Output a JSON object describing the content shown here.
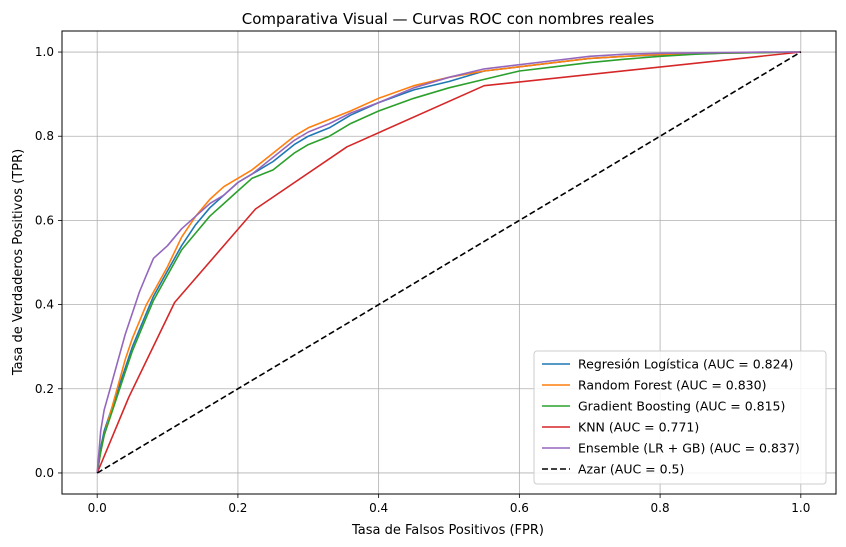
{
  "chart_data": {
    "type": "line",
    "title": "Comparativa Visual — Curvas ROC con nombres reales",
    "xlabel": "Tasa de Falsos Positivos (FPR)",
    "ylabel": "Tasa de Verdaderos Positivos (TPR)",
    "xlim": [
      -0.05,
      1.05
    ],
    "ylim": [
      -0.05,
      1.05
    ],
    "xticks": [
      "0.0",
      "0.2",
      "0.4",
      "0.6",
      "0.8",
      "1.0"
    ],
    "yticks": [
      "0.0",
      "0.2",
      "0.4",
      "0.6",
      "0.8",
      "1.0"
    ],
    "grid": true,
    "legend_position": "lower-right",
    "series": [
      {
        "name": "Regresión Logística (AUC = 0.824)",
        "color": "#1f77b4",
        "dash": "solid",
        "x": [
          0,
          0.005,
          0.01,
          0.02,
          0.03,
          0.04,
          0.05,
          0.06,
          0.07,
          0.08,
          0.1,
          0.12,
          0.14,
          0.16,
          0.18,
          0.2,
          0.22,
          0.25,
          0.28,
          0.3,
          0.33,
          0.36,
          0.4,
          0.45,
          0.5,
          0.55,
          0.6,
          0.65,
          0.7,
          0.75,
          0.8,
          0.85,
          0.9,
          0.95,
          1.0
        ],
        "y": [
          0,
          0.06,
          0.1,
          0.15,
          0.2,
          0.25,
          0.3,
          0.34,
          0.38,
          0.42,
          0.48,
          0.54,
          0.59,
          0.63,
          0.66,
          0.69,
          0.71,
          0.74,
          0.78,
          0.8,
          0.82,
          0.85,
          0.88,
          0.91,
          0.93,
          0.955,
          0.965,
          0.975,
          0.985,
          0.99,
          0.993,
          0.996,
          0.998,
          0.999,
          1.0
        ]
      },
      {
        "name": "Random Forest (AUC = 0.830)",
        "color": "#ff7f0e",
        "dash": "solid",
        "x": [
          0,
          0.005,
          0.01,
          0.02,
          0.03,
          0.04,
          0.05,
          0.06,
          0.07,
          0.08,
          0.1,
          0.12,
          0.14,
          0.16,
          0.18,
          0.2,
          0.22,
          0.25,
          0.28,
          0.3,
          0.33,
          0.36,
          0.4,
          0.45,
          0.5,
          0.55,
          0.6,
          0.65,
          0.7,
          0.75,
          0.8,
          0.85,
          0.9,
          0.95,
          1.0
        ],
        "y": [
          0,
          0.05,
          0.09,
          0.15,
          0.21,
          0.27,
          0.32,
          0.36,
          0.4,
          0.43,
          0.49,
          0.56,
          0.61,
          0.65,
          0.68,
          0.7,
          0.72,
          0.76,
          0.8,
          0.82,
          0.84,
          0.86,
          0.89,
          0.92,
          0.94,
          0.955,
          0.965,
          0.975,
          0.985,
          0.99,
          0.994,
          0.996,
          0.998,
          0.999,
          1.0
        ]
      },
      {
        "name": "Gradient Boosting (AUC = 0.815)",
        "color": "#2ca02c",
        "dash": "solid",
        "x": [
          0,
          0.005,
          0.01,
          0.02,
          0.03,
          0.04,
          0.05,
          0.06,
          0.07,
          0.08,
          0.1,
          0.12,
          0.14,
          0.16,
          0.18,
          0.2,
          0.22,
          0.25,
          0.28,
          0.3,
          0.33,
          0.36,
          0.4,
          0.45,
          0.5,
          0.55,
          0.6,
          0.65,
          0.7,
          0.75,
          0.8,
          0.85,
          0.9,
          0.95,
          1.0
        ],
        "y": [
          0,
          0.05,
          0.09,
          0.14,
          0.19,
          0.24,
          0.29,
          0.33,
          0.37,
          0.41,
          0.47,
          0.53,
          0.57,
          0.61,
          0.64,
          0.67,
          0.7,
          0.72,
          0.76,
          0.78,
          0.8,
          0.83,
          0.86,
          0.89,
          0.915,
          0.935,
          0.955,
          0.965,
          0.975,
          0.983,
          0.99,
          0.995,
          0.998,
          0.999,
          1.0
        ]
      },
      {
        "name": "KNN (AUC = 0.771)",
        "color": "#d62728",
        "dash": "solid",
        "x": [
          0,
          0.045,
          0.11,
          0.225,
          0.355,
          0.55,
          1.0
        ],
        "y": [
          0,
          0.18,
          0.405,
          0.627,
          0.775,
          0.92,
          1.0
        ]
      },
      {
        "name": "Ensemble (LR + GB) (AUC = 0.837)",
        "color": "#9467bd",
        "dash": "solid",
        "x": [
          0,
          0.005,
          0.01,
          0.02,
          0.03,
          0.04,
          0.05,
          0.06,
          0.07,
          0.08,
          0.1,
          0.12,
          0.14,
          0.16,
          0.18,
          0.2,
          0.22,
          0.25,
          0.28,
          0.3,
          0.33,
          0.36,
          0.4,
          0.45,
          0.5,
          0.55,
          0.6,
          0.65,
          0.7,
          0.75,
          0.8,
          0.85,
          0.9,
          0.95,
          1.0
        ],
        "y": [
          0,
          0.1,
          0.15,
          0.21,
          0.27,
          0.33,
          0.38,
          0.43,
          0.47,
          0.51,
          0.54,
          0.58,
          0.61,
          0.64,
          0.66,
          0.69,
          0.71,
          0.75,
          0.79,
          0.81,
          0.83,
          0.855,
          0.88,
          0.915,
          0.94,
          0.96,
          0.97,
          0.98,
          0.99,
          0.995,
          0.997,
          0.998,
          0.999,
          1.0,
          1.0
        ]
      },
      {
        "name": "Azar (AUC = 0.5)",
        "color": "#000000",
        "dash": "dashed",
        "x": [
          0,
          1
        ],
        "y": [
          0,
          1
        ]
      }
    ]
  }
}
